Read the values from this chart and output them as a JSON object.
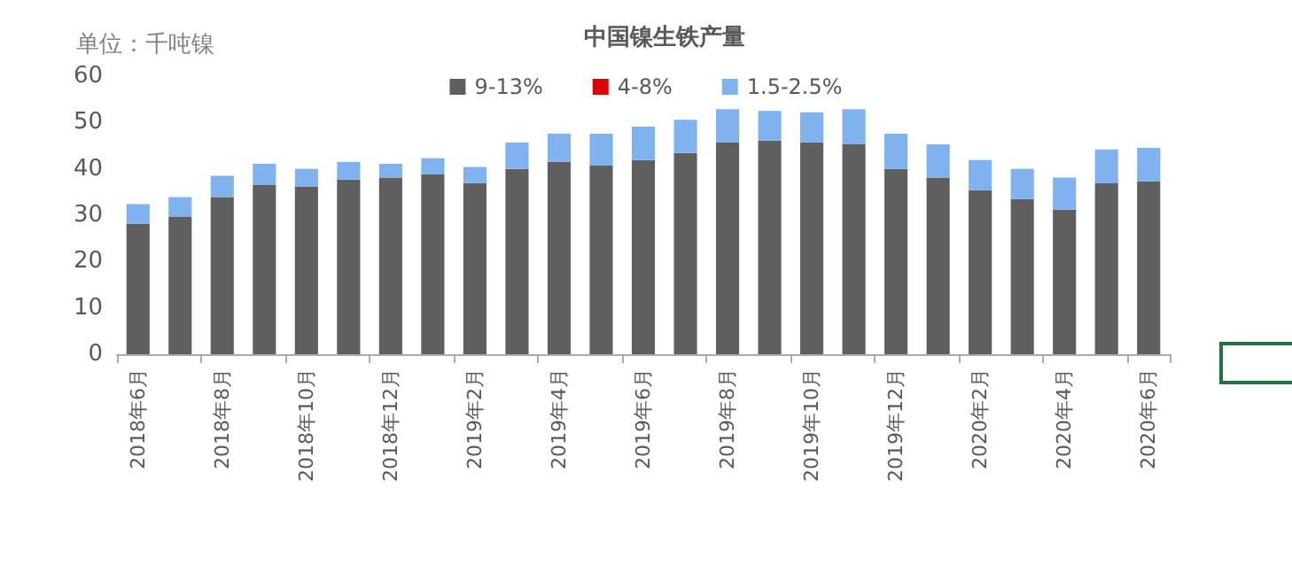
{
  "chart_data": {
    "type": "bar",
    "title": "中国镍生铁产量",
    "ylabel": "单位：千吨镍",
    "categories": [
      "2018年6月",
      null,
      "2018年8月",
      null,
      "2018年10月",
      null,
      "2018年12月",
      null,
      "2019年2月",
      null,
      "2019年4月",
      null,
      "2019年6月",
      null,
      "2019年8月",
      null,
      "2019年10月",
      null,
      "2019年12月",
      null,
      "2020年2月",
      null,
      "2020年4月",
      null,
      "2020年6月"
    ],
    "stacked": true,
    "series": [
      {
        "name": "9-13%",
        "color": "#5f5f5f",
        "values": [
          28.2,
          29.7,
          33.9,
          36.5,
          36.2,
          37.7,
          38.1,
          38.8,
          36.9,
          40.0,
          41.5,
          40.7,
          41.9,
          43.4,
          45.7,
          46.1,
          45.7,
          45.3,
          40.0,
          38.1,
          35.4,
          33.5,
          31.2,
          36.9,
          37.3
        ]
      },
      {
        "name": "4-8%",
        "color": "#e00000",
        "values": [
          null,
          null,
          null,
          null,
          null,
          null,
          null,
          null,
          null,
          null,
          null,
          null,
          null,
          null,
          null,
          null,
          null,
          null,
          null,
          null,
          null,
          null,
          null,
          null,
          null
        ]
      },
      {
        "name": "1.5-2.5%",
        "color": "#7fb2ee",
        "values": [
          4.2,
          4.2,
          4.6,
          4.6,
          3.8,
          3.8,
          3.0,
          3.5,
          3.5,
          5.7,
          6.1,
          6.9,
          7.2,
          7.2,
          7.2,
          6.4,
          6.5,
          7.6,
          7.6,
          7.2,
          6.5,
          6.5,
          6.9,
          7.3,
          7.2
        ]
      }
    ],
    "ylim": [
      0,
      60
    ],
    "yticks": [
      0,
      10,
      20,
      30,
      40,
      50,
      60
    ],
    "grid": false,
    "legend": "top"
  }
}
